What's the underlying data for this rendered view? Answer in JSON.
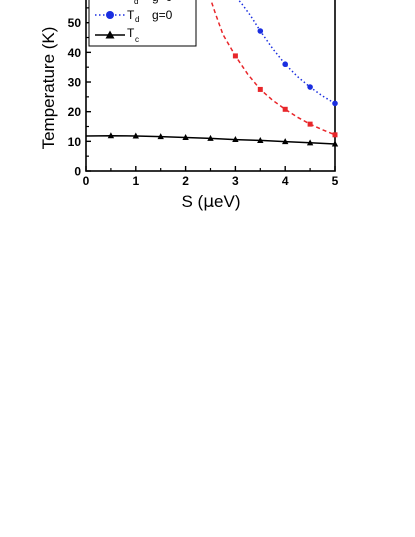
{
  "chart_data": {
    "type": "line",
    "xlabel": {
      "prefix": "S (",
      "mu": "μ",
      "suffix": "eV)"
    },
    "ylabel": "Temperature (K)",
    "xlim": [
      0,
      5
    ],
    "ylim": [
      0,
      59
    ],
    "xticks": [
      "0",
      "1",
      "2",
      "3",
      "4",
      "5"
    ],
    "yticks": [
      "0",
      "10",
      "20",
      "30",
      "40",
      "50"
    ],
    "grid": false,
    "legend": {
      "placement": "top-left",
      "entries": [
        {
          "main": "T",
          "sub": "d",
          "extra": "g=0"
        },
        {
          "main": "T",
          "sub": "c",
          "extra": ""
        }
      ]
    },
    "series": [
      {
        "key": "red",
        "color": "#e8262a",
        "marker": "square",
        "line": "dashed",
        "points": [
          [
            3.0,
            38.8
          ],
          [
            3.5,
            27.5
          ],
          [
            4.0,
            20.8
          ],
          [
            4.5,
            15.8
          ],
          [
            5.0,
            12.2
          ]
        ],
        "curve": [
          [
            2.48,
            59
          ],
          [
            2.6,
            53
          ],
          [
            2.75,
            46
          ],
          [
            3.0,
            38.8
          ],
          [
            3.25,
            32.6
          ],
          [
            3.5,
            27.5
          ],
          [
            3.75,
            23.8
          ],
          [
            4.0,
            20.8
          ],
          [
            4.25,
            18.1
          ],
          [
            4.5,
            15.8
          ],
          [
            4.75,
            13.9
          ],
          [
            5.0,
            12.2
          ]
        ]
      },
      {
        "key": "blue",
        "color": "#1a2ee0",
        "marker": "circle",
        "line": "dotted",
        "points": [
          [
            3.5,
            47.2
          ],
          [
            4.0,
            36.0
          ],
          [
            4.5,
            28.3
          ],
          [
            5.0,
            22.8
          ]
        ],
        "curve": [
          [
            2.95,
            59
          ],
          [
            3.1,
            57
          ],
          [
            3.3,
            52.5
          ],
          [
            3.5,
            47.2
          ],
          [
            3.75,
            41.2
          ],
          [
            4.0,
            36.0
          ],
          [
            4.25,
            31.8
          ],
          [
            4.5,
            28.3
          ],
          [
            4.75,
            25.3
          ],
          [
            5.0,
            22.8
          ]
        ]
      },
      {
        "key": "black",
        "color": "#000000",
        "marker": "triangle",
        "line": "solid",
        "points": [
          [
            0.5,
            11.9
          ],
          [
            1.0,
            11.8
          ],
          [
            1.5,
            11.6
          ],
          [
            2.0,
            11.3
          ],
          [
            2.5,
            11.0
          ],
          [
            3.0,
            10.6
          ],
          [
            3.5,
            10.3
          ],
          [
            4.0,
            9.9
          ],
          [
            4.5,
            9.5
          ],
          [
            5.0,
            9.1
          ]
        ],
        "curve": [
          [
            0.0,
            11.8
          ],
          [
            0.5,
            11.9
          ],
          [
            1.0,
            11.8
          ],
          [
            1.5,
            11.6
          ],
          [
            2.0,
            11.3
          ],
          [
            2.5,
            11.0
          ],
          [
            3.0,
            10.6
          ],
          [
            3.5,
            10.3
          ],
          [
            4.0,
            9.9
          ],
          [
            4.5,
            9.5
          ],
          [
            5.0,
            9.1
          ]
        ]
      }
    ]
  }
}
